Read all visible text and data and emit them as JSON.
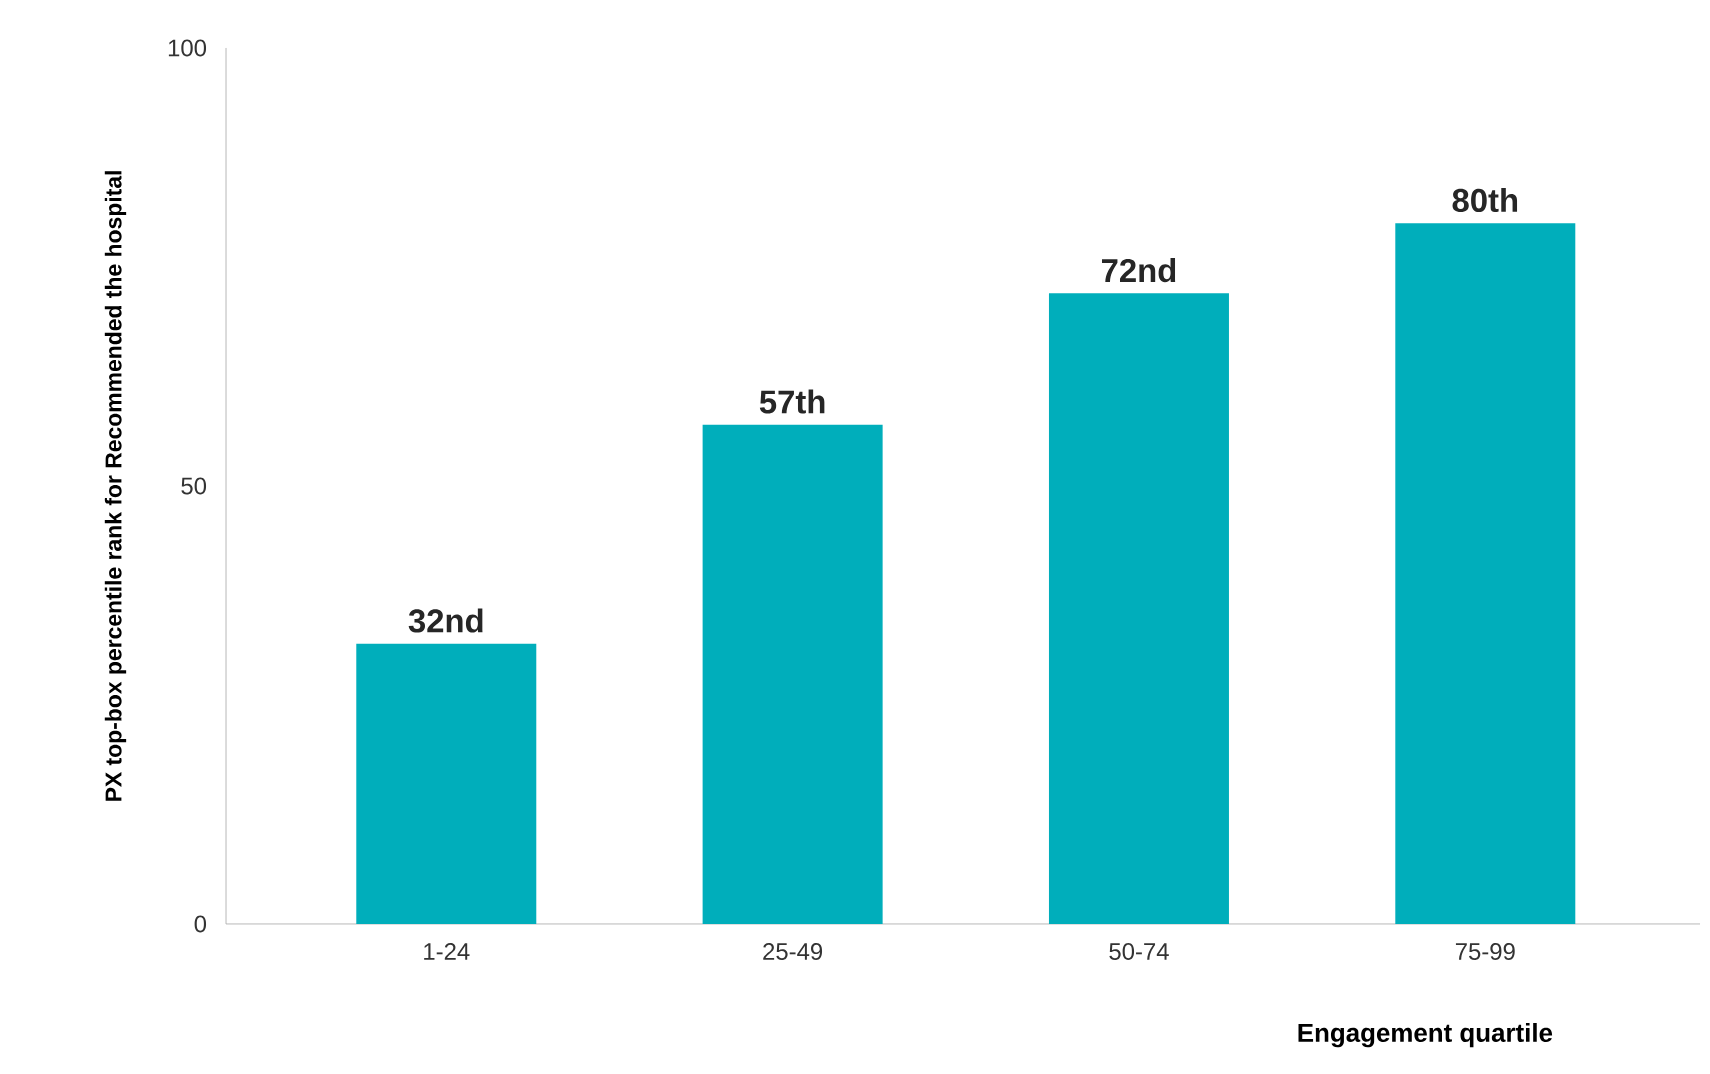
{
  "chart_data": {
    "type": "bar",
    "xlabel": "Engagement quartile",
    "ylabel": "PX top-box percentile rank for Recommended the hospital",
    "categories": [
      "1-24",
      "25-49",
      "50-74",
      "75-99"
    ],
    "values": [
      32,
      57,
      72,
      80
    ],
    "value_labels": [
      "32nd",
      "57th",
      "72nd",
      "80th"
    ],
    "color": "#00aebb",
    "ylim": [
      0,
      100
    ],
    "yticks": [
      0,
      50,
      100
    ]
  }
}
